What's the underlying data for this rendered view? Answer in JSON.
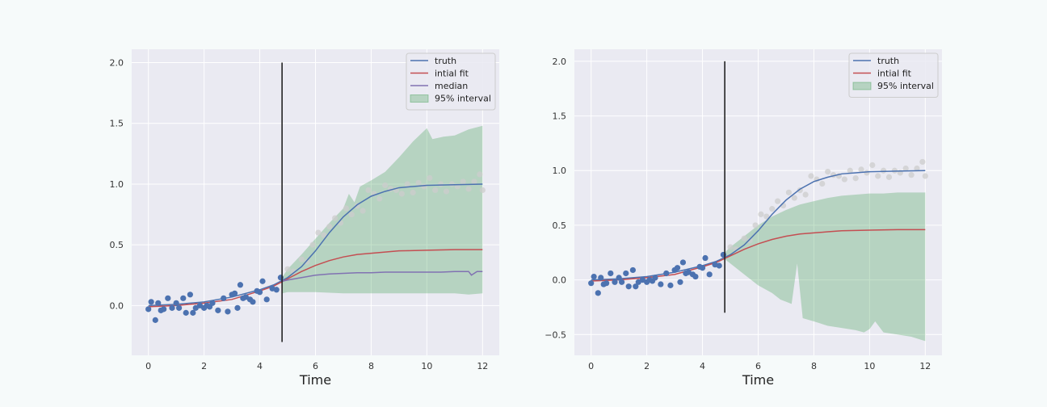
{
  "colors": {
    "background": "#eaeaf2",
    "grid": "#ffffff",
    "truth": "#4c72b0",
    "fit": "#c44e52",
    "median": "#8172b2",
    "interval": "#55a868",
    "observed": "#4c72b0",
    "future": "#cccccc",
    "vline": "#222222"
  },
  "chart_data": [
    {
      "type": "line",
      "xlabel": "Time",
      "xlim": [
        -0.6,
        12.6
      ],
      "ylim": [
        -0.41,
        2.11
      ],
      "xticks": [
        "0",
        "2",
        "4",
        "6",
        "8",
        "10",
        "12"
      ],
      "yticks": [
        "0.0",
        "0.5",
        "1.0",
        "1.5",
        "2.0"
      ],
      "grid": true,
      "legend_position": "top-right",
      "legend": [
        "truth",
        "intial fit",
        "median",
        "95% interval"
      ],
      "vline": {
        "x": 4.8,
        "ymin": -0.3,
        "ymax": 2.0
      },
      "truth_curve": {
        "x": [
          0,
          1,
          2,
          3,
          4,
          4.5,
          5,
          5.5,
          6,
          6.5,
          7,
          7.5,
          8,
          8.5,
          9,
          9.5,
          10,
          11,
          12
        ],
        "y": [
          0.0,
          0.01,
          0.03,
          0.07,
          0.13,
          0.17,
          0.23,
          0.32,
          0.45,
          0.6,
          0.73,
          0.83,
          0.9,
          0.94,
          0.97,
          0.98,
          0.99,
          0.995,
          1.0
        ]
      },
      "fit_curve": {
        "x": [
          0,
          1,
          2,
          3,
          4,
          4.5,
          5,
          5.5,
          6,
          6.5,
          7,
          7.5,
          8,
          8.5,
          9,
          10,
          11,
          12
        ],
        "y": [
          -0.01,
          0.0,
          0.02,
          0.05,
          0.12,
          0.16,
          0.22,
          0.28,
          0.33,
          0.37,
          0.4,
          0.42,
          0.43,
          0.44,
          0.45,
          0.455,
          0.46,
          0.46
        ]
      },
      "median_curve": {
        "x": [
          4.8,
          5,
          5.5,
          6,
          6.5,
          7,
          7.5,
          8,
          8.5,
          9,
          9.5,
          10,
          10.5,
          11,
          11.5,
          11.6,
          11.8,
          12
        ],
        "y": [
          0.2,
          0.21,
          0.23,
          0.25,
          0.26,
          0.265,
          0.27,
          0.27,
          0.275,
          0.275,
          0.275,
          0.275,
          0.275,
          0.28,
          0.28,
          0.25,
          0.28,
          0.28
        ]
      },
      "interval_upper": {
        "x": [
          4.8,
          5,
          5.5,
          6,
          6.5,
          7,
          7.2,
          7.4,
          7.6,
          8,
          8.5,
          9,
          9.5,
          10,
          10.2,
          10.4,
          10.6,
          11,
          11.5,
          12
        ],
        "y": [
          0.23,
          0.3,
          0.42,
          0.55,
          0.68,
          0.8,
          0.92,
          0.85,
          0.98,
          1.03,
          1.1,
          1.22,
          1.35,
          1.46,
          1.37,
          1.38,
          1.39,
          1.4,
          1.45,
          1.48
        ]
      },
      "interval_lower": {
        "x": [
          4.8,
          5,
          6,
          7,
          8,
          9,
          10,
          11,
          11.5,
          12
        ],
        "y": [
          0.1,
          0.11,
          0.11,
          0.1,
          0.1,
          0.1,
          0.1,
          0.1,
          0.09,
          0.1
        ]
      },
      "observed_points": {
        "x": [
          0,
          0.1,
          0.25,
          0.35,
          0.45,
          0.55,
          0.7,
          0.85,
          1.0,
          1.1,
          1.25,
          1.35,
          1.5,
          1.6,
          1.7,
          1.85,
          2.0,
          2.1,
          2.2,
          2.3,
          2.5,
          2.7,
          2.85,
          3.0,
          3.1,
          3.2,
          3.3,
          3.4,
          3.5,
          3.65,
          3.75,
          3.9,
          4.0,
          4.1,
          4.25,
          4.45,
          4.6,
          4.75
        ],
        "y": [
          -0.03,
          0.03,
          -0.12,
          0.02,
          -0.04,
          -0.03,
          0.06,
          -0.02,
          0.02,
          -0.02,
          0.06,
          -0.06,
          0.09,
          -0.06,
          -0.02,
          0.0,
          -0.02,
          0.0,
          -0.01,
          0.02,
          -0.04,
          0.06,
          -0.05,
          0.09,
          0.1,
          -0.02,
          0.17,
          0.06,
          0.07,
          0.05,
          0.03,
          0.12,
          0.11,
          0.2,
          0.05,
          0.14,
          0.13,
          0.23
        ]
      },
      "future_points": {
        "x": [
          5.0,
          5.2,
          5.5,
          5.7,
          5.9,
          6.1,
          6.3,
          6.5,
          6.7,
          6.9,
          7.1,
          7.3,
          7.5,
          7.7,
          7.9,
          8.1,
          8.3,
          8.5,
          8.7,
          8.9,
          9.1,
          9.3,
          9.5,
          9.7,
          9.9,
          10.1,
          10.3,
          10.5,
          10.7,
          10.9,
          11.1,
          11.3,
          11.5,
          11.7,
          11.9,
          12.0
        ],
        "y": [
          0.3,
          0.28,
          0.38,
          0.36,
          0.5,
          0.6,
          0.58,
          0.65,
          0.72,
          0.68,
          0.8,
          0.75,
          0.82,
          0.78,
          0.95,
          0.92,
          0.88,
          0.99,
          0.96,
          0.95,
          0.92,
          1.0,
          0.93,
          1.01,
          0.98,
          1.05,
          0.95,
          1.0,
          0.94,
          1.0,
          0.98,
          1.02,
          0.96,
          1.02,
          1.08,
          0.95
        ]
      }
    },
    {
      "type": "line",
      "xlabel": "Time",
      "xlim": [
        -0.6,
        12.6
      ],
      "ylim": [
        -0.69,
        2.11
      ],
      "xticks": [
        "0",
        "2",
        "4",
        "6",
        "8",
        "10",
        "12"
      ],
      "yticks": [
        "−0.5",
        "0.0",
        "0.5",
        "1.0",
        "1.5",
        "2.0"
      ],
      "grid": true,
      "legend_position": "top-right",
      "legend": [
        "truth",
        "intial fit",
        "95% interval"
      ],
      "vline": {
        "x": 4.8,
        "ymin": -0.3,
        "ymax": 2.0
      },
      "truth_curve": {
        "x": [
          0,
          1,
          2,
          3,
          4,
          4.5,
          5,
          5.5,
          6,
          6.5,
          7,
          7.5,
          8,
          8.5,
          9,
          9.5,
          10,
          11,
          12
        ],
        "y": [
          0.0,
          0.01,
          0.03,
          0.07,
          0.13,
          0.17,
          0.23,
          0.32,
          0.45,
          0.6,
          0.73,
          0.83,
          0.9,
          0.94,
          0.97,
          0.98,
          0.99,
          0.995,
          1.0
        ]
      },
      "fit_curve": {
        "x": [
          0,
          1,
          2,
          3,
          4,
          4.5,
          5,
          5.5,
          6,
          6.5,
          7,
          7.5,
          8,
          8.5,
          9,
          10,
          11,
          12
        ],
        "y": [
          -0.01,
          0.0,
          0.02,
          0.05,
          0.12,
          0.16,
          0.22,
          0.28,
          0.33,
          0.37,
          0.4,
          0.42,
          0.43,
          0.44,
          0.45,
          0.455,
          0.46,
          0.46
        ]
      },
      "median_curve": null,
      "interval_upper": {
        "x": [
          4.8,
          5,
          5.5,
          6,
          6.5,
          7,
          7.5,
          8,
          8.5,
          9,
          9.5,
          10,
          10.5,
          11,
          11.5,
          12
        ],
        "y": [
          0.25,
          0.3,
          0.4,
          0.5,
          0.58,
          0.64,
          0.69,
          0.72,
          0.75,
          0.77,
          0.78,
          0.79,
          0.79,
          0.8,
          0.8,
          0.8
        ]
      },
      "interval_lower": {
        "x": [
          4.8,
          5,
          5.5,
          6,
          6.5,
          6.8,
          7,
          7.2,
          7.4,
          7.6,
          8,
          8.5,
          9,
          9.5,
          9.8,
          10,
          10.2,
          10.5,
          11,
          11.5,
          12
        ],
        "y": [
          0.19,
          0.15,
          0.05,
          -0.05,
          -0.12,
          -0.18,
          -0.2,
          -0.22,
          0.15,
          -0.35,
          -0.38,
          -0.42,
          -0.44,
          -0.46,
          -0.48,
          -0.45,
          -0.38,
          -0.48,
          -0.5,
          -0.52,
          -0.56
        ]
      },
      "observed_points": {
        "x": [
          0,
          0.1,
          0.25,
          0.35,
          0.45,
          0.55,
          0.7,
          0.85,
          1.0,
          1.1,
          1.25,
          1.35,
          1.5,
          1.6,
          1.7,
          1.85,
          2.0,
          2.1,
          2.2,
          2.3,
          2.5,
          2.7,
          2.85,
          3.0,
          3.1,
          3.2,
          3.3,
          3.4,
          3.5,
          3.65,
          3.75,
          3.9,
          4.0,
          4.1,
          4.25,
          4.45,
          4.6,
          4.75
        ],
        "y": [
          -0.03,
          0.03,
          -0.12,
          0.02,
          -0.04,
          -0.03,
          0.06,
          -0.02,
          0.02,
          -0.02,
          0.06,
          -0.06,
          0.09,
          -0.06,
          -0.02,
          0.0,
          -0.02,
          0.0,
          -0.01,
          0.02,
          -0.04,
          0.06,
          -0.05,
          0.09,
          0.11,
          -0.02,
          0.16,
          0.06,
          0.07,
          0.05,
          0.03,
          0.12,
          0.11,
          0.2,
          0.05,
          0.14,
          0.13,
          0.23
        ]
      },
      "future_points": {
        "x": [
          5.0,
          5.2,
          5.5,
          5.7,
          5.9,
          6.1,
          6.3,
          6.5,
          6.7,
          6.9,
          7.1,
          7.3,
          7.5,
          7.7,
          7.9,
          8.1,
          8.3,
          8.5,
          8.7,
          8.9,
          9.1,
          9.3,
          9.5,
          9.7,
          9.9,
          10.1,
          10.3,
          10.5,
          10.7,
          10.9,
          11.1,
          11.3,
          11.5,
          11.7,
          11.9,
          12.0
        ],
        "y": [
          0.3,
          0.28,
          0.38,
          0.36,
          0.5,
          0.6,
          0.58,
          0.65,
          0.72,
          0.68,
          0.8,
          0.75,
          0.82,
          0.78,
          0.95,
          0.92,
          0.88,
          0.99,
          0.96,
          0.95,
          0.92,
          1.0,
          0.93,
          1.01,
          0.98,
          1.05,
          0.95,
          1.0,
          0.94,
          1.0,
          0.98,
          1.02,
          0.96,
          1.02,
          1.08,
          0.95
        ]
      }
    }
  ]
}
